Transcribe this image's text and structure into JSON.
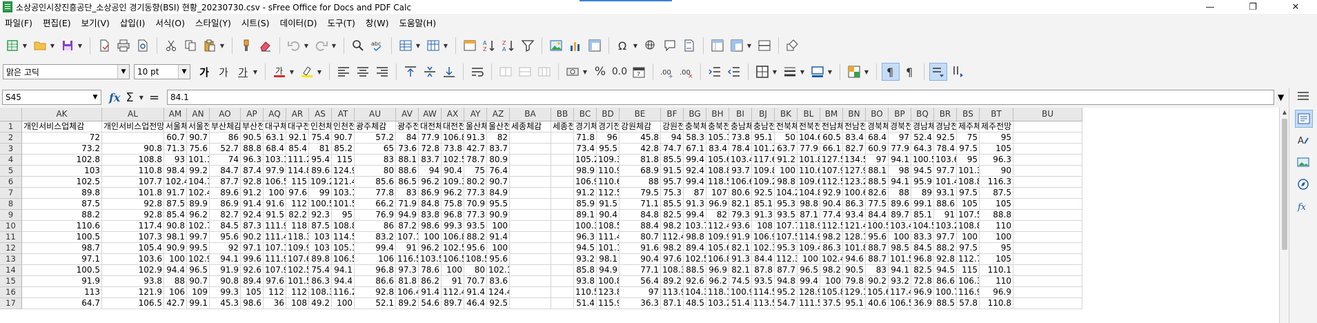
{
  "window": {
    "title": "소상공인시장진흥공단_소상공인 경기동향(BSI) 현황_20230730.csv - sFree Office for Docs and PDF Calc",
    "minimize": "—",
    "restore": "❐",
    "close": "✕"
  },
  "menu": [
    "파일(F)",
    "편집(E)",
    "보기(V)",
    "삽입(I)",
    "서식(O)",
    "스타일(Y)",
    "시트(S)",
    "데이터(D)",
    "도구(T)",
    "창(W)",
    "도움말(H)"
  ],
  "format_toolbar": {
    "font_name": "맑은 고딕",
    "font_size": "10 pt",
    "bold": "가",
    "italic": "가",
    "underline": "가",
    "percent": "%",
    "number": "0.0"
  },
  "formula_bar": {
    "cell_ref": "S45",
    "formula": "84.1",
    "fx": "fx",
    "sigma": "Σ",
    "equals": "="
  },
  "columns": [
    "AK",
    "AL",
    "AM",
    "AN",
    "AO",
    "AP",
    "AQ",
    "AR",
    "AS",
    "AT",
    "AU",
    "AV",
    "AW",
    "AX",
    "AY",
    "AZ",
    "BA",
    "BB",
    "BC",
    "BD",
    "BE",
    "BF",
    "BG",
    "BH",
    "BI",
    "BJ",
    "BK",
    "BL",
    "BM",
    "BN",
    "BO",
    "BP",
    "BQ",
    "BR",
    "BS",
    "BT",
    "BU"
  ],
  "row_numbers": [
    "1",
    "2",
    "3",
    "4",
    "5",
    "6",
    "7",
    "8",
    "9",
    "10",
    "11",
    "12",
    "13",
    "14",
    "15",
    "16",
    "17"
  ],
  "header_row": [
    "개인서비스업체감",
    "개인서비스업전망",
    "서울체",
    "서울전",
    "부산체감",
    "부산전",
    "대구체",
    "대구전",
    "인천체",
    "인천전",
    "광주체감",
    "광주전",
    "대전체",
    "대전전",
    "울산체",
    "울산전",
    "세종체감",
    "세종전",
    "경기체",
    "경기전",
    "강원체감",
    "강원전",
    "충북체",
    "충북전",
    "충남체",
    "충남전",
    "전북체",
    "전북전",
    "전남체",
    "전남전",
    "경북체",
    "경북전",
    "경남체",
    "경남전",
    "제주체",
    "제주전망",
    ""
  ],
  "data_rows": [
    [
      "72",
      "",
      "60.7",
      "90.7",
      "86",
      "90.5",
      "63.1",
      "92.1",
      "75.4",
      "90.7",
      "57.2",
      "84",
      "77.9",
      "106.8",
      "91.3",
      "82",
      "",
      "",
      "71.8",
      "96",
      "45.8",
      "94",
      "58.3",
      "105.1",
      "73.8",
      "95.1",
      "50",
      "104.6",
      "60.5",
      "83.4",
      "68.4",
      "97",
      "52.4",
      "92.5",
      "75",
      "95",
      ""
    ],
    [
      "73.2",
      "90.8",
      "71.3",
      "75.6",
      "52.7",
      "88.8",
      "68.4",
      "85.4",
      "81",
      "85.2",
      "65",
      "73.6",
      "72.8",
      "73.8",
      "42.7",
      "83.7",
      "",
      "",
      "73.4",
      "95.5",
      "42.8",
      "74.7",
      "67.1",
      "83.4",
      "78.4",
      "101.2",
      "63.7",
      "77.9",
      "66.1",
      "82.7",
      "60.9",
      "77.9",
      "64.3",
      "78.4",
      "97.5",
      "105",
      ""
    ],
    [
      "102.8",
      "108.8",
      "93",
      "101.1",
      "74",
      "96.3",
      "103.1",
      "111.2",
      "95.4",
      "115",
      "83",
      "88.1",
      "83.7",
      "102.5",
      "78.7",
      "80.9",
      "",
      "",
      "105.2",
      "109.3",
      "81.8",
      "85.5",
      "99.4",
      "105.6",
      "103.4",
      "117.6",
      "91.2",
      "101.8",
      "127.5",
      "134.5",
      "97",
      "94.1",
      "100.5",
      "103.6",
      "95",
      "96.3",
      ""
    ],
    [
      "103",
      "110.8",
      "98.4",
      "99.2",
      "84.7",
      "87.4",
      "97.9",
      "114.8",
      "89.6",
      "124.9",
      "80",
      "88.6",
      "94",
      "90.4",
      "75",
      "76.4",
      "",
      "",
      "98.9",
      "110.9",
      "68.9",
      "91.5",
      "92.4",
      "108.8",
      "93.7",
      "109.8",
      "100",
      "110.6",
      "107.9",
      "127.9",
      "88.1",
      "98",
      "94.5",
      "97.7",
      "101.3",
      "90",
      ""
    ],
    [
      "102.5",
      "107.7",
      "102.4",
      "104.7",
      "87.7",
      "92.8",
      "106.5",
      "115",
      "109.2",
      "121.4",
      "85.6",
      "86.5",
      "96.2",
      "109.3",
      "80.2",
      "90.7",
      "",
      "",
      "106.9",
      "110.6",
      "88",
      "95.7",
      "99.4",
      "118.5",
      "106.6",
      "109.2",
      "98.8",
      "109.6",
      "112.5",
      "123.2",
      "88.5",
      "94.1",
      "95.9",
      "101.4",
      "108.8",
      "116.3",
      ""
    ],
    [
      "89.8",
      "101.8",
      "91.7",
      "102.4",
      "89.6",
      "91.2",
      "100",
      "97.6",
      "99",
      "103.1",
      "77.8",
      "83",
      "86.9",
      "96.2",
      "77.3",
      "84.9",
      "",
      "",
      "91.2",
      "112.5",
      "79.5",
      "75.3",
      "87",
      "107",
      "80.6",
      "92.5",
      "104.2",
      "104.8",
      "92.9",
      "100.6",
      "82.6",
      "88",
      "89",
      "93.1",
      "97.5",
      "87.5",
      ""
    ],
    [
      "87.5",
      "92.8",
      "87.5",
      "89.9",
      "86.9",
      "91.4",
      "91.6",
      "112",
      "100.5",
      "101.5",
      "66.2",
      "71.9",
      "84.8",
      "75.8",
      "70.9",
      "95.5",
      "",
      "",
      "85.9",
      "91.5",
      "71.1",
      "85.5",
      "91.3",
      "96.9",
      "82.1",
      "85.1",
      "95.3",
      "98.8",
      "90.4",
      "86.3",
      "77.5",
      "89.6",
      "99.1",
      "88.6",
      "105",
      "105",
      ""
    ],
    [
      "88.2",
      "92.8",
      "85.4",
      "96.2",
      "82.7",
      "92.4",
      "91.5",
      "82.2",
      "92.3",
      "95",
      "76.9",
      "94.9",
      "83.8",
      "96.8",
      "77.3",
      "90.9",
      "",
      "",
      "89.1",
      "90.4",
      "84.8",
      "82.5",
      "99.4",
      "82",
      "79.3",
      "91.3",
      "93.5",
      "87.1",
      "77.4",
      "93.4",
      "84.4",
      "89.7",
      "85.1",
      "91",
      "107.5",
      "88.8",
      ""
    ],
    [
      "110.6",
      "117.4",
      "90.8",
      "102.7",
      "84.5",
      "87.3",
      "111.9",
      "118",
      "87.5",
      "108.8",
      "86",
      "87.2",
      "98.6",
      "99.3",
      "93.5",
      "100",
      "",
      "",
      "100.3",
      "108.5",
      "88.4",
      "98.2",
      "103.7",
      "112.4",
      "93.6",
      "108",
      "107.7",
      "118.9",
      "112.5",
      "121.4",
      "100.5",
      "103.4",
      "104.5",
      "103.2",
      "108.8",
      "110",
      ""
    ],
    [
      "100.5",
      "107.3",
      "98.1",
      "99.7",
      "95.6",
      "90.2",
      "111.4",
      "118.3",
      "103",
      "114.5",
      "83.2",
      "107.1",
      "100",
      "106.8",
      "88.2",
      "91.4",
      "",
      "",
      "96.3",
      "111.4",
      "80.7",
      "112.4",
      "98.8",
      "109.9",
      "91.9",
      "106.9",
      "107.5",
      "114.9",
      "98.2",
      "128.1",
      "95.6",
      "100",
      "83.3",
      "97.7",
      "100",
      "100",
      ""
    ],
    [
      "98.7",
      "105.4",
      "90.9",
      "99.5",
      "92",
      "97.1",
      "107.1",
      "109.9",
      "103",
      "105.1",
      "99.4",
      "91",
      "96.2",
      "102.5",
      "95.6",
      "100",
      "",
      "",
      "94.5",
      "101.1",
      "91.6",
      "98.2",
      "89.4",
      "105.6",
      "82.1",
      "102.3",
      "95.3",
      "109.4",
      "86.3",
      "101.8",
      "88.7",
      "98.5",
      "84.5",
      "88.2",
      "97.5",
      "95",
      ""
    ],
    [
      "97.1",
      "103.6",
      "100",
      "102.9",
      "94.1",
      "99.6",
      "111.9",
      "107.6",
      "89.8",
      "106.5",
      "106",
      "116.5",
      "103.5",
      "106.5",
      "108.5",
      "95.6",
      "",
      "",
      "93.2",
      "98.1",
      "90.4",
      "97.6",
      "102.5",
      "106.8",
      "91.3",
      "84.4",
      "112.3",
      "100",
      "102.4",
      "94.6",
      "88.7",
      "101.5",
      "96.8",
      "92.8",
      "112.7",
      "105",
      ""
    ],
    [
      "100.5",
      "102.9",
      "94.4",
      "96.5",
      "91.9",
      "92.6",
      "107.9",
      "102.5",
      "75.4",
      "94.1",
      "96.8",
      "97.3",
      "78.6",
      "100",
      "80",
      "102.1",
      "",
      "",
      "85.8",
      "94.9",
      "77.1",
      "108.3",
      "88.5",
      "96.9",
      "82.1",
      "87.8",
      "87.7",
      "96.5",
      "98.2",
      "90.5",
      "83",
      "94.1",
      "82.5",
      "94.5",
      "115",
      "110.1",
      ""
    ],
    [
      "91.9",
      "93.8",
      "88",
      "90.7",
      "90.8",
      "89.4",
      "97.6",
      "101.5",
      "86.3",
      "94.4",
      "86.6",
      "81.8",
      "86.2",
      "91",
      "70.7",
      "83.6",
      "",
      "",
      "93.8",
      "100.8",
      "56.4",
      "89.2",
      "92.6",
      "96.2",
      "74.5",
      "93.5",
      "94.8",
      "99.4",
      "100",
      "79.8",
      "90.2",
      "93.2",
      "72.8",
      "86.6",
      "106.3",
      "110",
      ""
    ],
    [
      "113",
      "121.9",
      "106",
      "109",
      "99.3",
      "105",
      "112",
      "112",
      "108.3",
      "116.2",
      "92.8",
      "106.4",
      "91.4",
      "112.4",
      "91.4",
      "124.4",
      "",
      "",
      "110.5",
      "123.8",
      "97",
      "113.9",
      "104.3",
      "118.1",
      "100.9",
      "114.5",
      "95.2",
      "128.9",
      "105.8",
      "129.1",
      "105.6",
      "117.4",
      "96.9",
      "100.7",
      "116.9",
      "96.9",
      ""
    ],
    [
      "64.7",
      "106.5",
      "42.7",
      "99.1",
      "45.3",
      "98.6",
      "36",
      "108",
      "49.2",
      "100",
      "52.1",
      "89.2",
      "54.6",
      "89.7",
      "46.4",
      "92.5",
      "",
      "",
      "51.4",
      "115.9",
      "36.3",
      "87.1",
      "48.5",
      "103.2",
      "51.4",
      "113.5",
      "54.7",
      "111.5",
      "37.5",
      "95.1",
      "40.6",
      "106.5",
      "36.9",
      "88.5",
      "57.8",
      "110.8",
      ""
    ]
  ]
}
